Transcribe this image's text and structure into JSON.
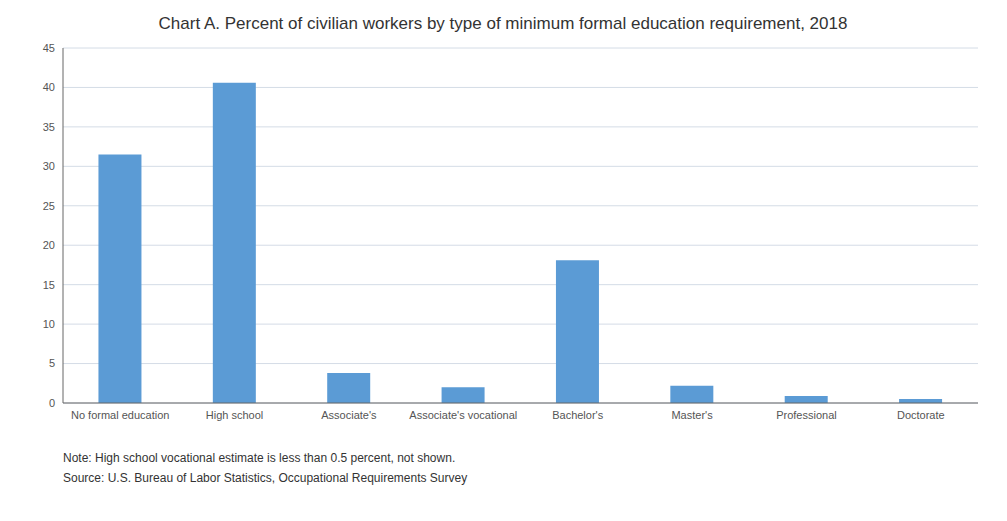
{
  "chart_data": {
    "type": "bar",
    "title": "Chart A. Percent of civilian workers by type of minimum formal education requirement, 2018",
    "categories": [
      "No formal education",
      "High school",
      "Associate's",
      "Associate's vocational",
      "Bachelor's",
      "Master's",
      "Professional",
      "Doctorate"
    ],
    "values": [
      31.5,
      40.6,
      3.8,
      2.0,
      18.1,
      2.2,
      0.9,
      0.5
    ],
    "color": "#5b9bd5",
    "ylim": [
      0,
      45
    ],
    "yticks": [
      0,
      5,
      10,
      15,
      20,
      25,
      30,
      35,
      40,
      45
    ],
    "grid": true,
    "annotations": [
      "Note: High school vocational estimate is less than 0.5 percent, not shown.",
      "Source: U.S. Bureau of Labor Statistics, Occupational Requirements Survey"
    ]
  }
}
